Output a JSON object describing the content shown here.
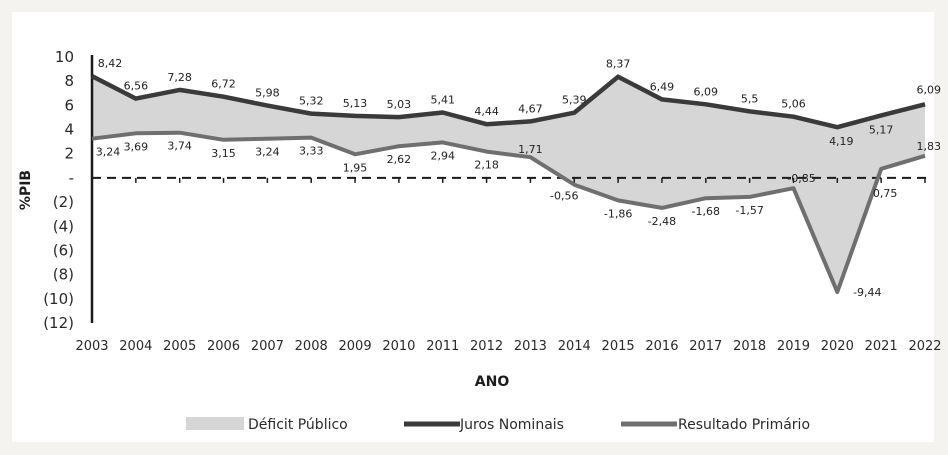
{
  "chart_data": {
    "type": "line",
    "title": "",
    "xlabel": "ANO",
    "ylabel": "%PIB",
    "ylim": [
      -12,
      10
    ],
    "yticks": [
      10,
      8,
      6,
      4,
      2,
      0,
      -2,
      -4,
      -6,
      -8,
      -10,
      -12
    ],
    "ytick_labels": [
      "10",
      "8",
      "6",
      "4",
      "2",
      "-",
      "(2)",
      "(4)",
      "(6)",
      "(8)",
      "(10)",
      "(12)"
    ],
    "categories": [
      "2003",
      "2004",
      "2005",
      "2006",
      "2007",
      "2008",
      "2009",
      "2010",
      "2011",
      "2012",
      "2013",
      "2014",
      "2015",
      "2016",
      "2017",
      "2018",
      "2019",
      "2020",
      "2021",
      "2022"
    ],
    "series": [
      {
        "name": "Juros Nominais",
        "values": [
          8.42,
          6.56,
          7.28,
          6.72,
          5.98,
          5.32,
          5.13,
          5.03,
          5.41,
          4.44,
          4.67,
          5.39,
          8.37,
          6.49,
          6.09,
          5.5,
          5.06,
          4.19,
          5.17,
          6.09
        ],
        "labels": [
          "8,42",
          "6,56",
          "7,28",
          "6,72",
          "5,98",
          "5,32",
          "5,13",
          "5,03",
          "5,41",
          "4,44",
          "4,67",
          "5,39",
          "8,37",
          "6,49",
          "6,09",
          "5,5",
          "5,06",
          "4,19",
          "5,17",
          "6,09"
        ],
        "color": "#3a3a3a"
      },
      {
        "name": "Resultado Primário",
        "values": [
          3.24,
          3.69,
          3.74,
          3.15,
          3.24,
          3.33,
          1.95,
          2.62,
          2.94,
          2.18,
          1.71,
          -0.56,
          -1.86,
          -2.48,
          -1.68,
          -1.57,
          -0.85,
          -9.44,
          0.75,
          1.83
        ],
        "labels": [
          "3,24",
          "3,69",
          "3,74",
          "3,15",
          "3,24",
          "3,33",
          "1,95",
          "2,62",
          "2,94",
          "2,18",
          "1,71",
          "-0,56",
          "-1,86",
          "-2,48",
          "-1,68",
          "-1,57",
          "-0,85",
          "-9,44",
          "0,75",
          "1,83"
        ],
        "color": "#6f6f6f"
      },
      {
        "name": "Déficit Público",
        "kind": "area-between",
        "color": "#d6d6d6"
      }
    ],
    "grid": false,
    "zero_line": "dashed",
    "legend": "bottom"
  }
}
